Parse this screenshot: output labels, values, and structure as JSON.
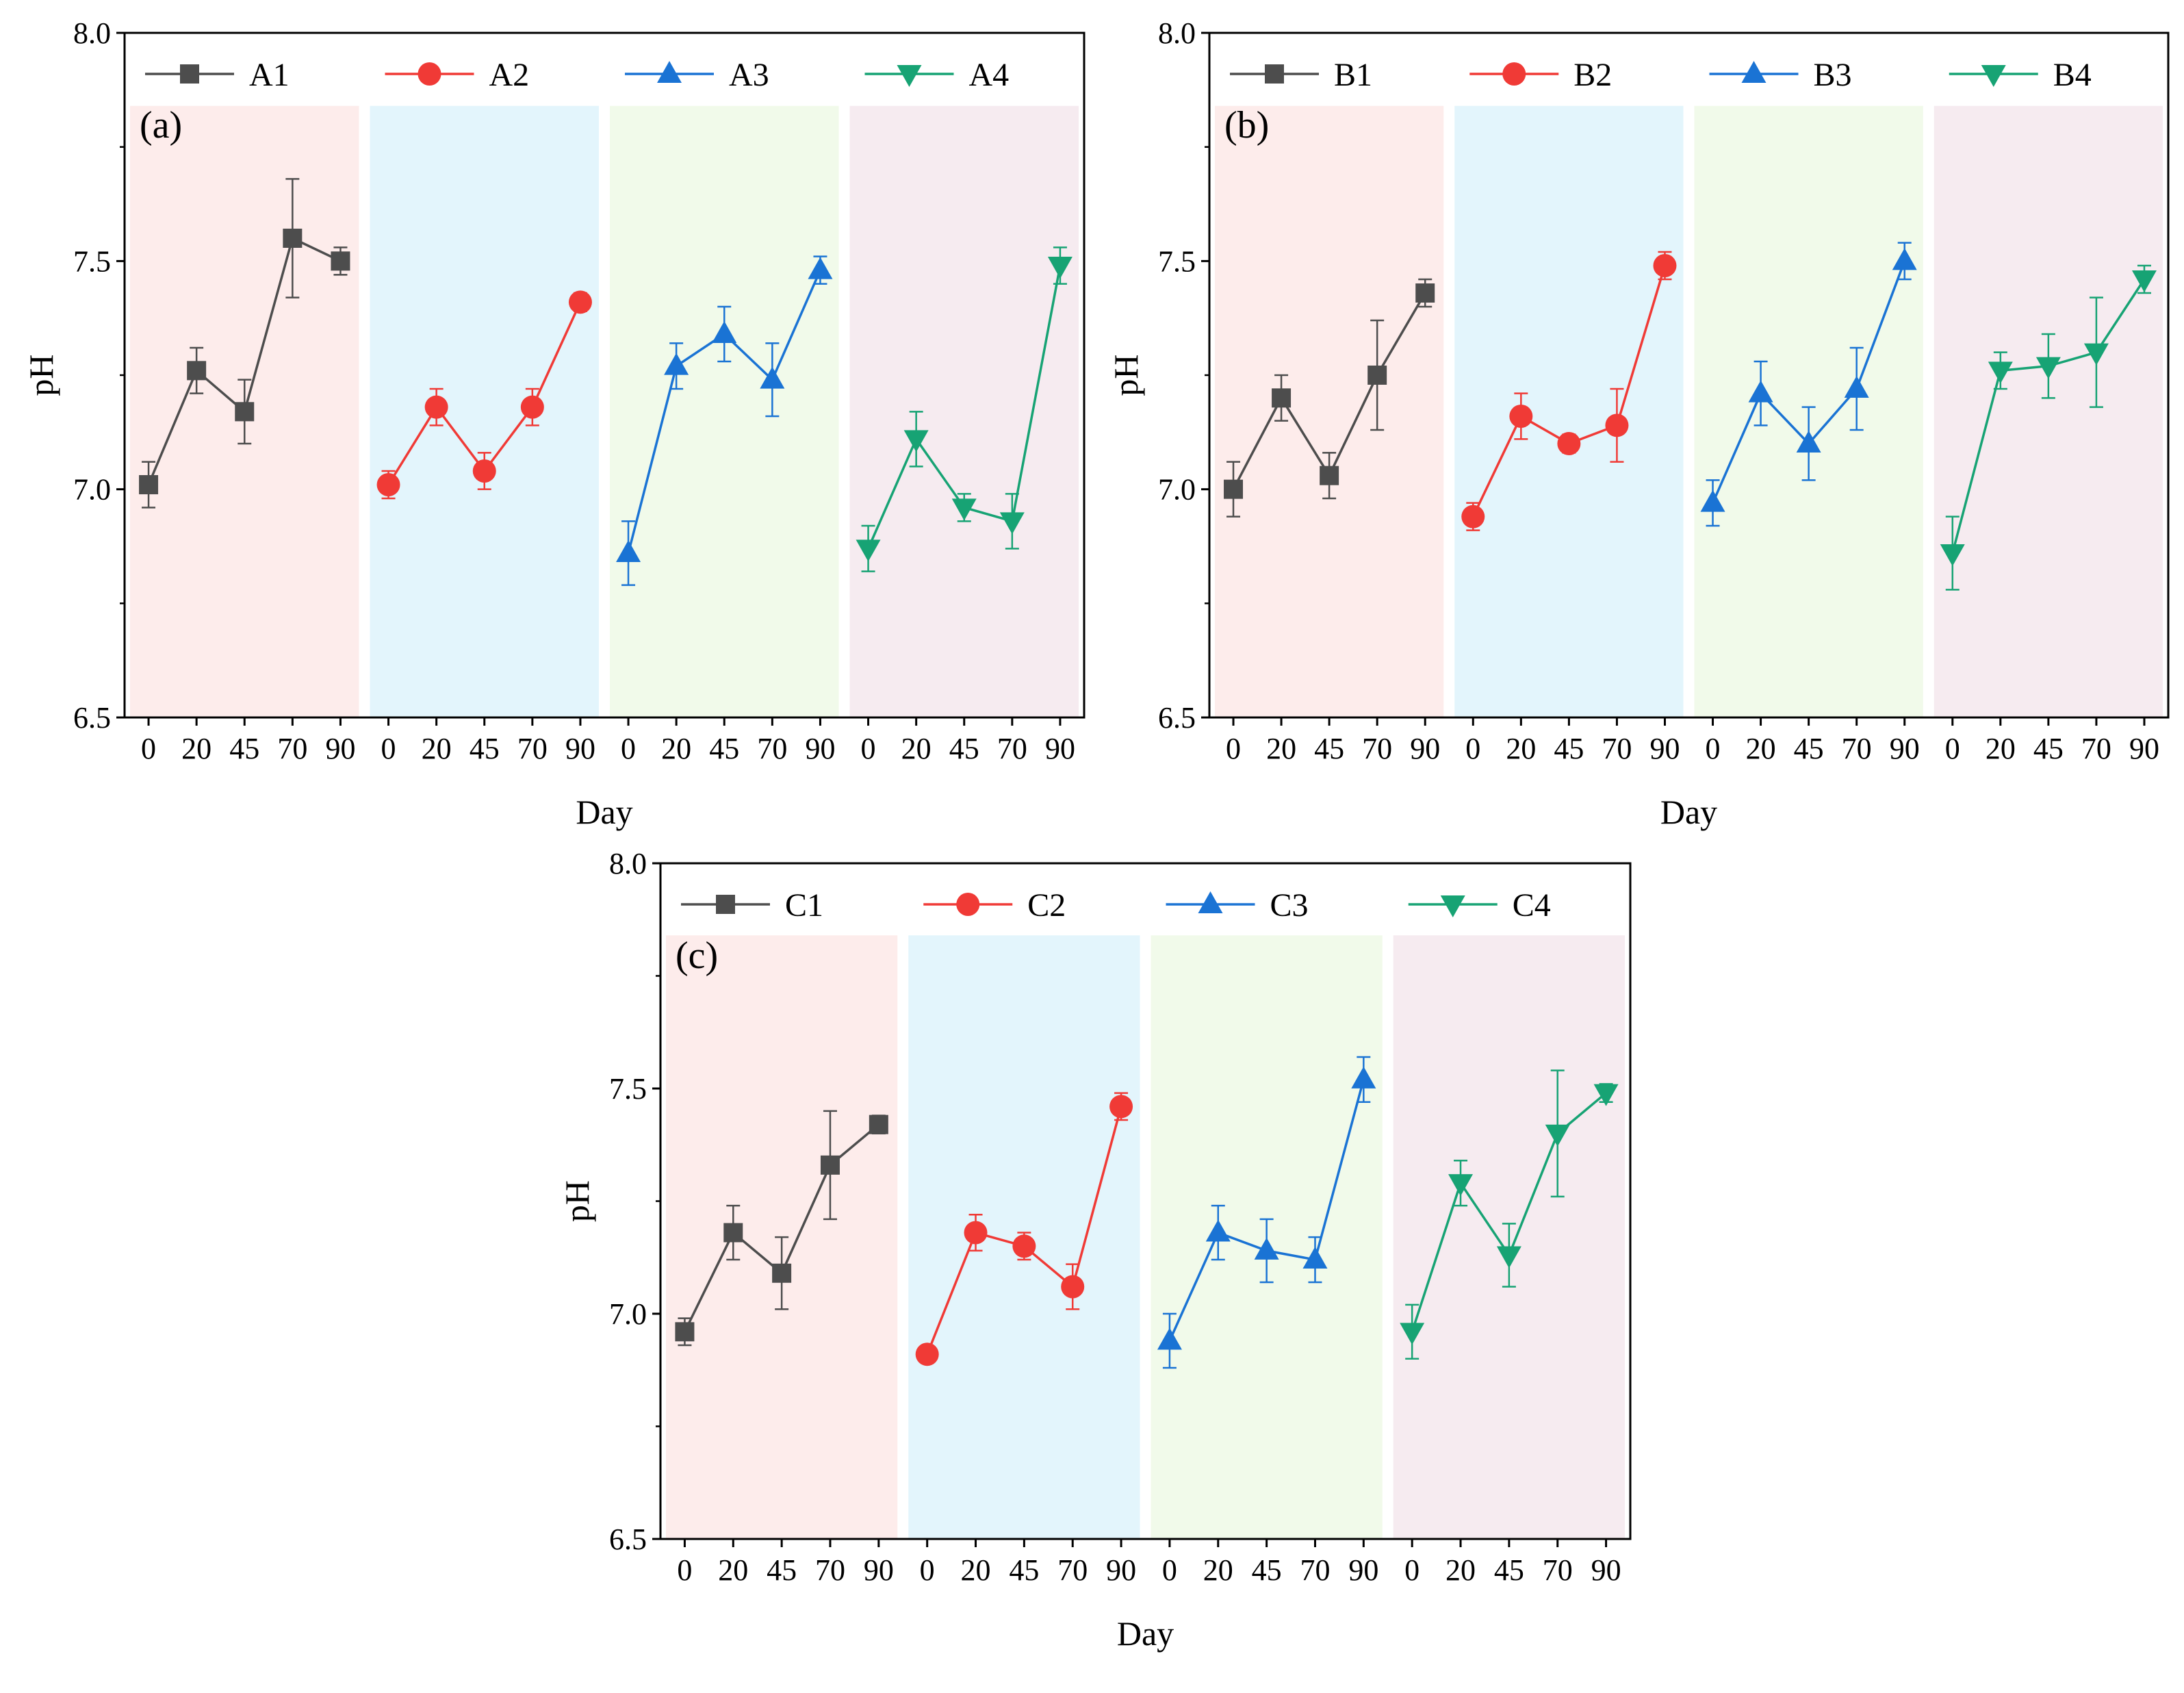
{
  "figure": {
    "background": "#ffffff"
  },
  "styles": {
    "series_colors": [
      "#4d4d4d",
      "#f03a36",
      "#1a73d4",
      "#17a374"
    ],
    "band_colors": [
      "#fdeceb",
      "#e3f5fc",
      "#f1faea",
      "#f6ebf0"
    ],
    "markers": [
      "square",
      "circle",
      "triangle-up",
      "triangle-down"
    ]
  },
  "chart_data": [
    {
      "type": "line",
      "panel_label": "(a)",
      "xlabel": "Day",
      "ylabel": "pH",
      "ylim": [
        6.5,
        8.0
      ],
      "yticks": [
        "6.5",
        "7.0",
        "7.5",
        "8.0"
      ],
      "x": [
        "0",
        "20",
        "45",
        "70",
        "90"
      ],
      "legend_position": "top",
      "series": [
        {
          "name": "A1",
          "values": [
            7.01,
            7.26,
            7.17,
            7.55,
            7.5
          ],
          "errors": [
            0.05,
            0.05,
            0.07,
            0.13,
            0.03
          ]
        },
        {
          "name": "A2",
          "values": [
            7.01,
            7.18,
            7.04,
            7.18,
            7.41
          ],
          "errors": [
            0.03,
            0.04,
            0.04,
            0.04,
            0.02
          ]
        },
        {
          "name": "A3",
          "values": [
            6.86,
            7.27,
            7.34,
            7.24,
            7.48
          ],
          "errors": [
            0.07,
            0.05,
            0.06,
            0.08,
            0.03
          ]
        },
        {
          "name": "A4",
          "values": [
            6.87,
            7.11,
            6.96,
            6.93,
            7.49
          ],
          "errors": [
            0.05,
            0.06,
            0.03,
            0.06,
            0.04
          ]
        }
      ]
    },
    {
      "type": "line",
      "panel_label": "(b)",
      "xlabel": "Day",
      "ylabel": "pH",
      "ylim": [
        6.5,
        8.0
      ],
      "yticks": [
        "6.5",
        "7.0",
        "7.5",
        "8.0"
      ],
      "x": [
        "0",
        "20",
        "45",
        "70",
        "90"
      ],
      "legend_position": "top",
      "series": [
        {
          "name": "B1",
          "values": [
            7.0,
            7.2,
            7.03,
            7.25,
            7.43
          ],
          "errors": [
            0.06,
            0.05,
            0.05,
            0.12,
            0.03
          ]
        },
        {
          "name": "B2",
          "values": [
            6.94,
            7.16,
            7.1,
            7.14,
            7.49
          ],
          "errors": [
            0.03,
            0.05,
            0.02,
            0.08,
            0.03
          ]
        },
        {
          "name": "B3",
          "values": [
            6.97,
            7.21,
            7.1,
            7.22,
            7.5
          ],
          "errors": [
            0.05,
            0.07,
            0.08,
            0.09,
            0.04
          ]
        },
        {
          "name": "B4",
          "values": [
            6.86,
            7.26,
            7.27,
            7.3,
            7.46
          ],
          "errors": [
            0.08,
            0.04,
            0.07,
            0.12,
            0.03
          ]
        }
      ]
    },
    {
      "type": "line",
      "panel_label": "(c)",
      "xlabel": "Day",
      "ylabel": "pH",
      "ylim": [
        6.5,
        8.0
      ],
      "yticks": [
        "6.5",
        "7.0",
        "7.5",
        "8.0"
      ],
      "x": [
        "0",
        "20",
        "45",
        "70",
        "90"
      ],
      "legend_position": "top",
      "series": [
        {
          "name": "C1",
          "values": [
            6.96,
            7.18,
            7.09,
            7.33,
            7.42
          ],
          "errors": [
            0.03,
            0.06,
            0.08,
            0.12,
            0.02
          ]
        },
        {
          "name": "C2",
          "values": [
            6.91,
            7.18,
            7.15,
            7.06,
            7.46
          ],
          "errors": [
            0.01,
            0.04,
            0.03,
            0.05,
            0.03
          ]
        },
        {
          "name": "C3",
          "values": [
            6.94,
            7.18,
            7.14,
            7.12,
            7.52
          ],
          "errors": [
            0.06,
            0.06,
            0.07,
            0.05,
            0.05
          ]
        },
        {
          "name": "C4",
          "values": [
            6.96,
            7.29,
            7.13,
            7.4,
            7.49
          ],
          "errors": [
            0.06,
            0.05,
            0.07,
            0.14,
            0.02
          ]
        }
      ]
    }
  ]
}
